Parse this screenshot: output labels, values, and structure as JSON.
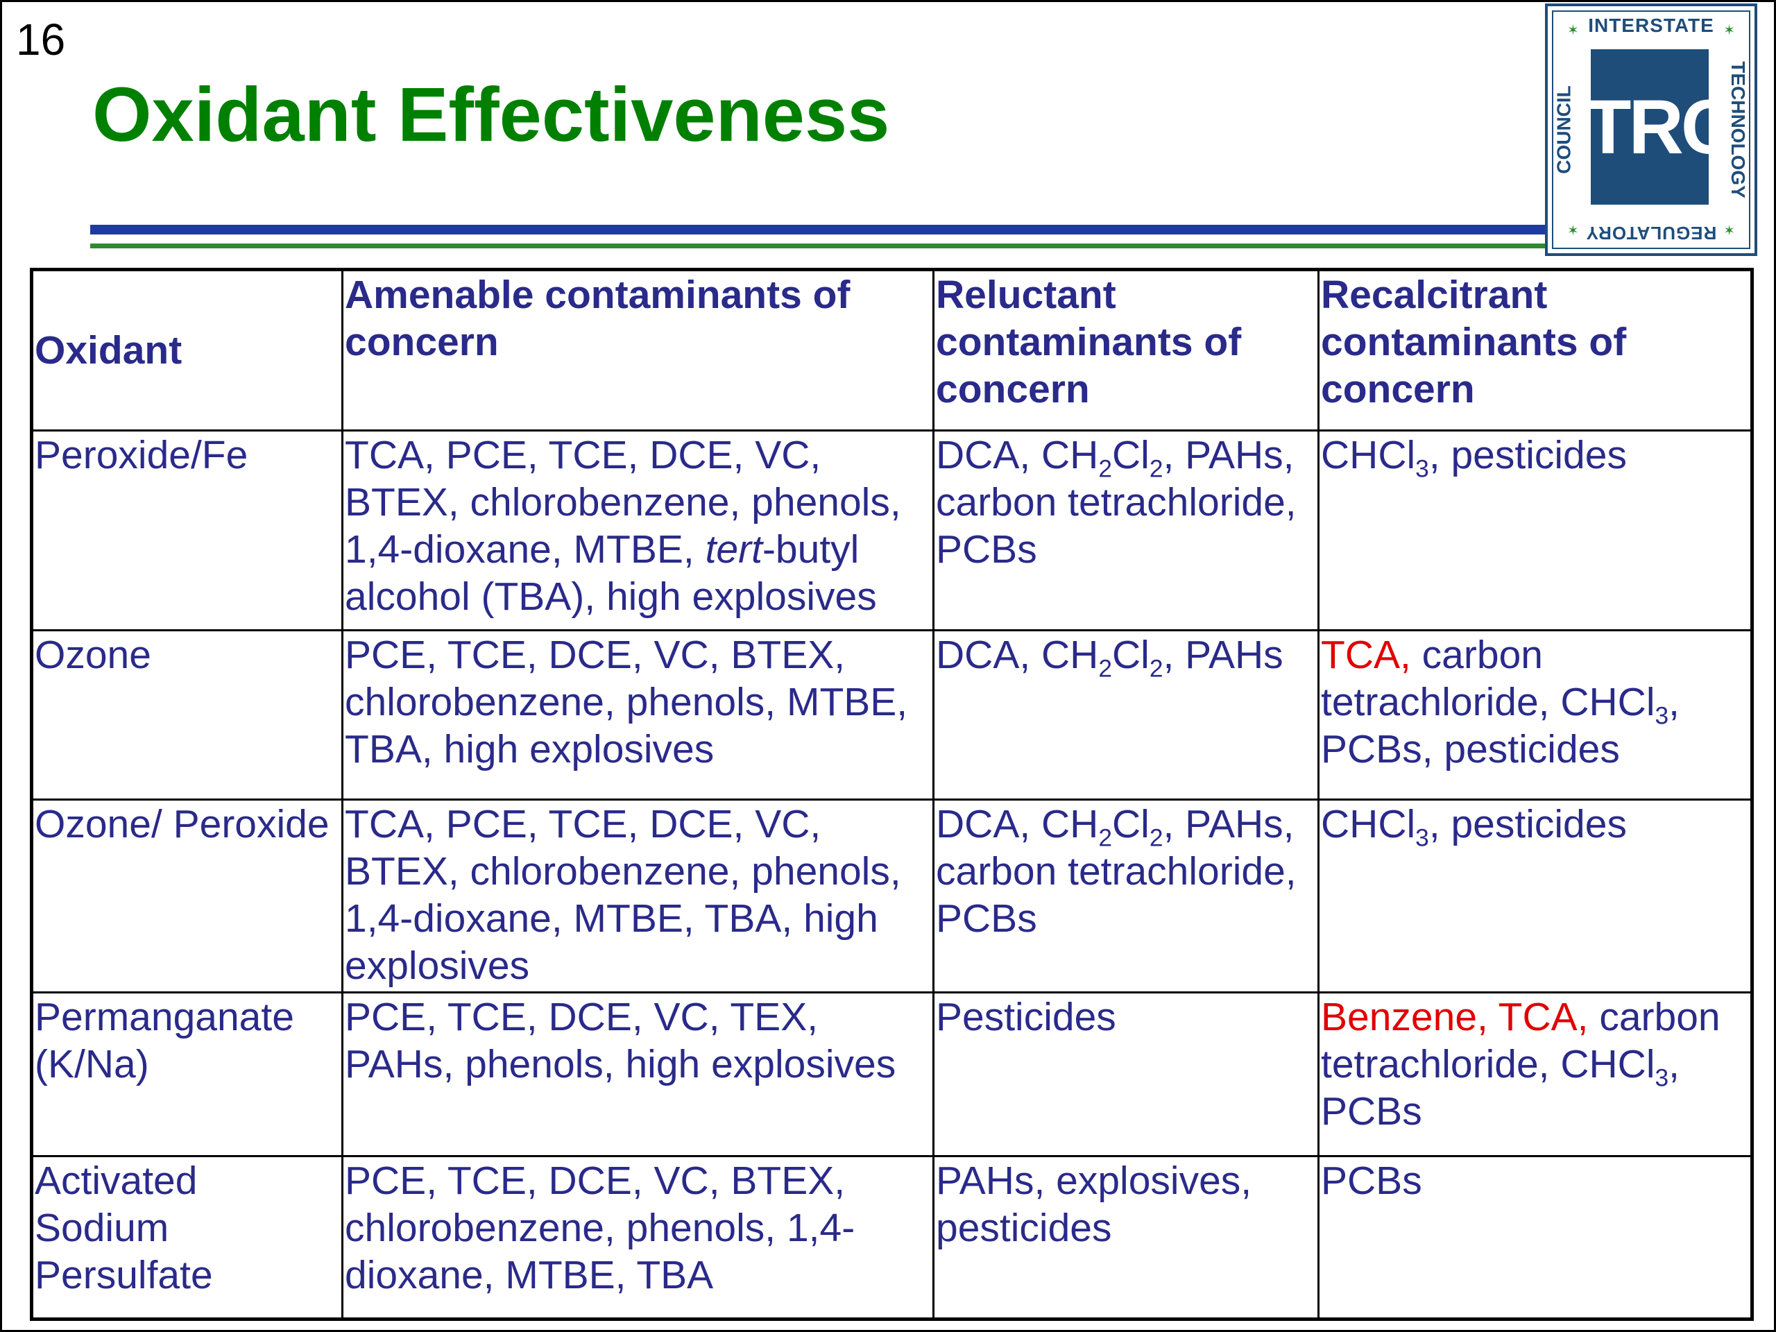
{
  "slide": {
    "number": "16",
    "title": "Oxidant Effectiveness"
  },
  "logo": {
    "top": "INTERSTATE",
    "right": "TECHNOLOGY",
    "bottom": "REGULATORY",
    "left": "COUNCIL",
    "mark": "ITRC",
    "star": "✶"
  },
  "table": {
    "headers": [
      "Oxidant",
      "Amenable contaminants of concern",
      "Reluctant contaminants of concern",
      "Recalcitrant contaminants of concern"
    ],
    "rows": [
      {
        "oxidant": "Peroxide/Fe",
        "amenable": {
          "pre": "TCA, PCE, TCE, DCE, VC, BTEX, chlorobenzene, phenols, 1,4-dioxane, MTBE, ",
          "italic": "tert",
          "post": "-butyl alcohol (TBA), high explosives"
        },
        "reluctant": {
          "a": "DCA, CH",
          "sub1": "2",
          "b": "Cl",
          "sub2": "2",
          "c": ", PAHs, carbon tetrachloride, PCBs"
        },
        "recalcitrant": {
          "a": "CHCl",
          "sub1": "3",
          "b": ", pesticides"
        }
      },
      {
        "oxidant": "Ozone",
        "amenable": "PCE, TCE, DCE, VC, BTEX, chlorobenzene, phenols, MTBE, TBA, high explosives",
        "reluctant": {
          "a": "DCA, CH",
          "sub1": "2",
          "b": "Cl",
          "sub2": "2",
          "c": ", PAHs"
        },
        "recalcitrant": {
          "red": "TCA,",
          "a": " carbon tetrachloride, CHCl",
          "sub1": "3",
          "b": ", PCBs, pesticides"
        }
      },
      {
        "oxidant": "Ozone/ Peroxide",
        "amenable": "TCA, PCE, TCE, DCE, VC, BTEX, chlorobenzene, phenols, 1,4-dioxane, MTBE, TBA, high explosives",
        "reluctant": {
          "a": "DCA, CH",
          "sub1": "2",
          "b": "Cl",
          "sub2": "2",
          "c": ", PAHs, carbon tetrachloride, PCBs"
        },
        "recalcitrant": {
          "a": "CHCl",
          "sub1": "3",
          "b": ", pesticides"
        }
      },
      {
        "oxidant": "Permanganate (K/Na)",
        "amenable": "PCE, TCE, DCE, VC, TEX, PAHs, phenols, high explosives",
        "reluctant": "Pesticides",
        "recalcitrant": {
          "red": "Benzene, TCA,",
          "a": " carbon tetrachloride, CHCl",
          "sub1": "3",
          "b": ", PCBs"
        }
      },
      {
        "oxidant": "Activated Sodium Persulfate",
        "amenable": "PCE, TCE, DCE, VC, BTEX, chlorobenzene, phenols, 1,4-dioxane, MTBE, TBA",
        "reluctant": "PAHs, explosives, pesticides",
        "recalcitrant": "PCBs"
      }
    ]
  },
  "colors": {
    "title": "#008000",
    "header_text": "#2a2a8a",
    "body_text": "#2a2a8a",
    "highlight": "#e00000",
    "rule_blue": "#1f3a9e",
    "rule_green": "#2e8b2e",
    "logo": "#1e4d7a"
  }
}
